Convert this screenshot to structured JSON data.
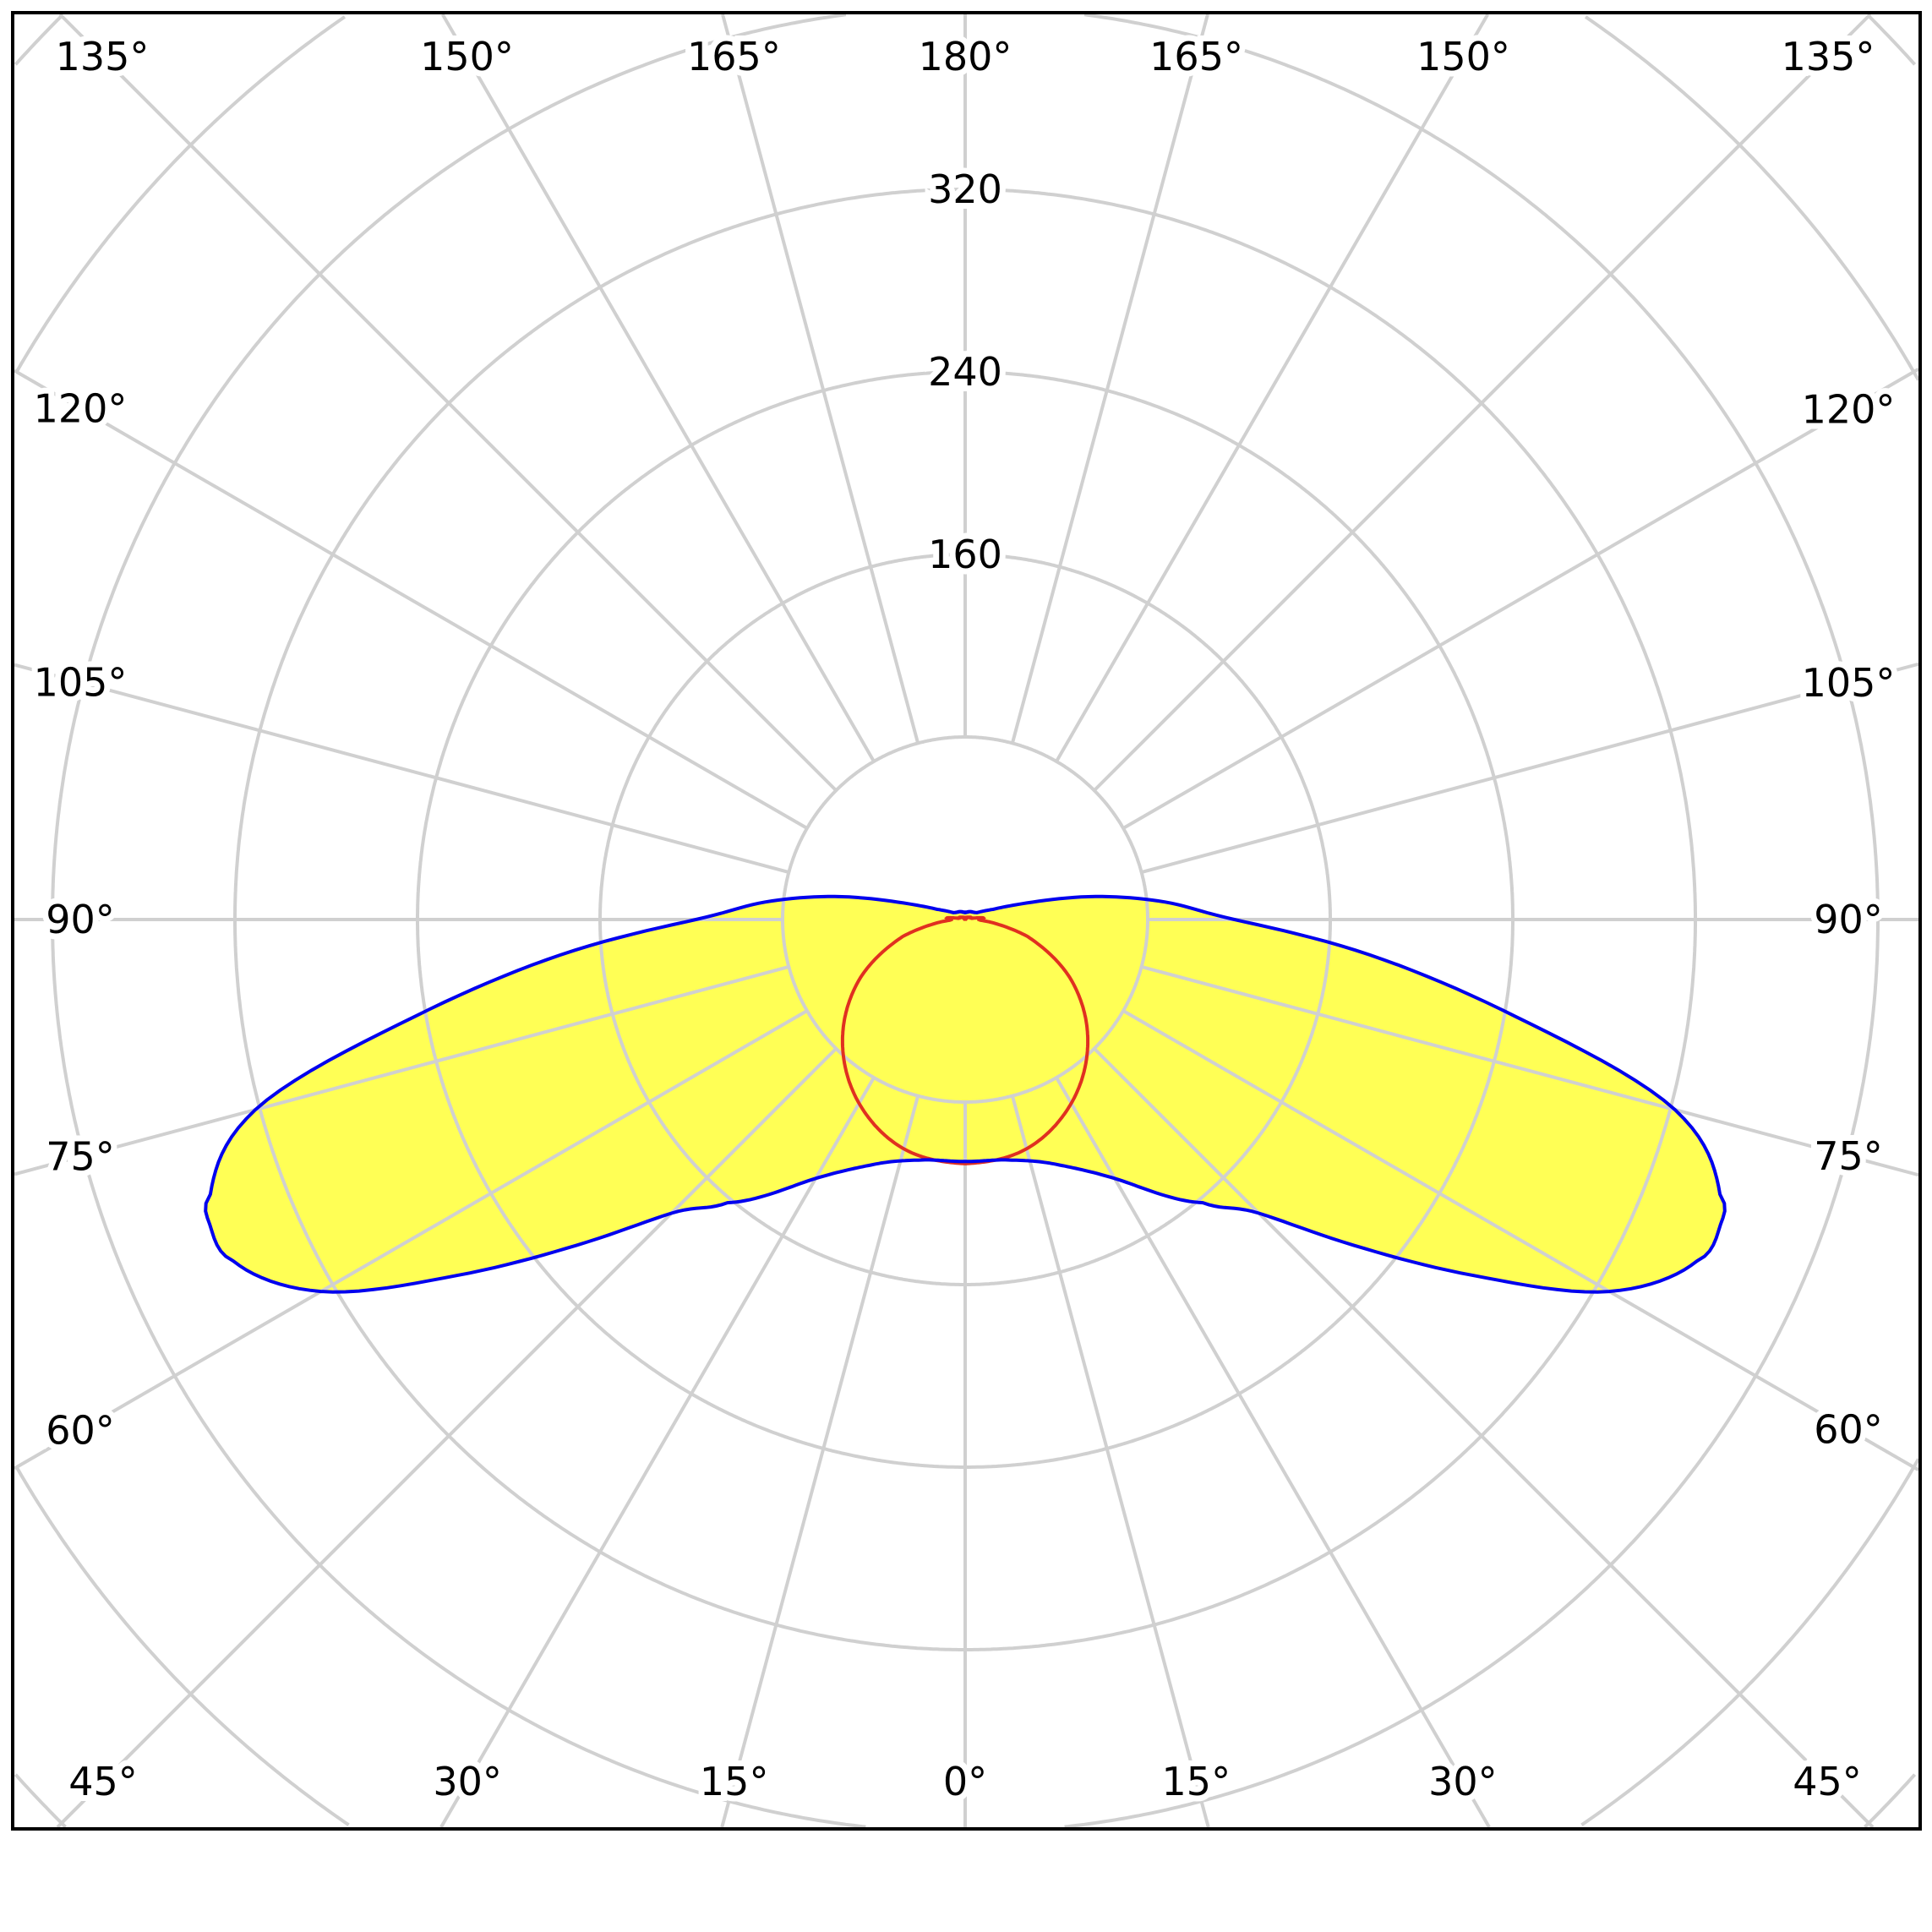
{
  "chart_data": {
    "type": "polar",
    "title": "",
    "radial_axis": {
      "range": [
        0,
        480
      ],
      "ring_step": 80,
      "tick_labels": [
        "160",
        "240",
        "320"
      ],
      "tick_values": [
        160,
        240,
        320
      ]
    },
    "angular_axis": {
      "zero": "bottom",
      "step_degrees": 15,
      "labels": [
        {
          "text": "0°",
          "angle": 0,
          "side": 1
        },
        {
          "text": "15°",
          "angle": 15,
          "side": -1
        },
        {
          "text": "15°",
          "angle": 15,
          "side": 1
        },
        {
          "text": "30°",
          "angle": 30,
          "side": -1
        },
        {
          "text": "30°",
          "angle": 30,
          "side": 1
        },
        {
          "text": "45°",
          "angle": 45,
          "side": -1
        },
        {
          "text": "45°",
          "angle": 45,
          "side": 1
        },
        {
          "text": "60°",
          "angle": 60,
          "side": -1
        },
        {
          "text": "60°",
          "angle": 60,
          "side": 1
        },
        {
          "text": "75°",
          "angle": 75,
          "side": -1
        },
        {
          "text": "75°",
          "angle": 75,
          "side": 1
        },
        {
          "text": "90°",
          "angle": 90,
          "side": -1
        },
        {
          "text": "90°",
          "angle": 90,
          "side": 1
        },
        {
          "text": "105°",
          "angle": 105,
          "side": -1
        },
        {
          "text": "105°",
          "angle": 105,
          "side": 1
        },
        {
          "text": "120°",
          "angle": 120,
          "side": -1
        },
        {
          "text": "120°",
          "angle": 120,
          "side": 1
        },
        {
          "text": "135°",
          "angle": 135,
          "side": -1
        },
        {
          "text": "135°",
          "angle": 135,
          "side": 1
        },
        {
          "text": "150°",
          "angle": 150,
          "side": -1
        },
        {
          "text": "150°",
          "angle": 150,
          "side": 1
        },
        {
          "text": "165°",
          "angle": 165,
          "side": -1
        },
        {
          "text": "165°",
          "angle": 165,
          "side": 1
        },
        {
          "text": "180°",
          "angle": 180,
          "side": 1
        }
      ]
    },
    "grid": true,
    "series": [
      {
        "color": "#0000ee",
        "fill": "#ffff55",
        "angles": [
          0,
          10,
          20,
          30,
          40,
          45,
          50,
          55,
          60,
          65,
          68,
          70,
          75,
          80,
          85,
          90,
          95,
          100,
          105,
          110,
          120,
          150,
          180
        ],
        "values": [
          106,
          107,
          114,
          131,
          162,
          182,
          222,
          272,
          326,
          354,
          357,
          352,
          322,
          245,
          178,
          118,
          88,
          58,
          28,
          13,
          6,
          4,
          3
        ]
      },
      {
        "color": "#e03020",
        "angles": [
          0,
          15,
          30,
          45,
          60,
          75,
          85,
          90,
          95,
          100,
          180
        ],
        "values": [
          107,
          104,
          93,
          76,
          54,
          28,
          10,
          6,
          8,
          3,
          0
        ]
      }
    ]
  }
}
